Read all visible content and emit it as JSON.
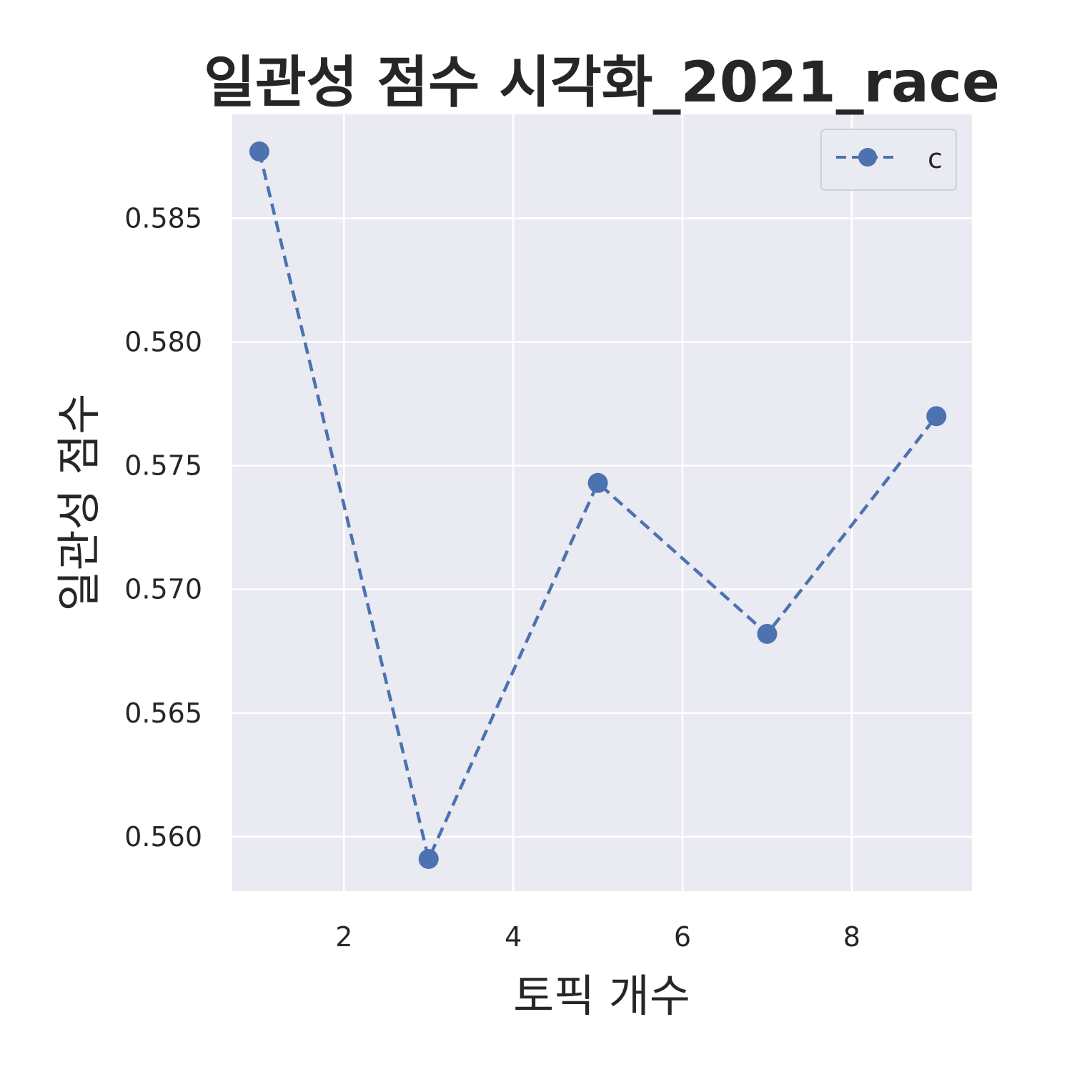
{
  "chart_data": {
    "type": "line",
    "title": "일관성 점수 시각화_2021_race",
    "xlabel": "토픽 개수",
    "ylabel": "일관성 점수",
    "x": [
      1,
      3,
      5,
      7,
      9
    ],
    "series": [
      {
        "name": "c",
        "values": [
          0.5877,
          0.5591,
          0.5743,
          0.5682,
          0.577
        ]
      }
    ],
    "xticks": [
      2,
      4,
      6,
      8
    ],
    "xtick_labels": [
      "2",
      "4",
      "6",
      "8"
    ],
    "yticks": [
      0.56,
      0.565,
      0.57,
      0.575,
      0.58,
      0.585
    ],
    "ytick_labels": [
      "0.560",
      "0.565",
      "0.570",
      "0.575",
      "0.580",
      "0.585"
    ],
    "xlim": [
      0.68,
      9.42
    ],
    "ylim": [
      0.5578,
      0.5892
    ],
    "grid": true,
    "legend_position": "top-right",
    "line_style": "dashed",
    "marker": "circle",
    "colors": {
      "series": "#4c72b0",
      "plot_background": "#eaeaf2",
      "grid": "#ffffff",
      "text": "#262626"
    }
  }
}
